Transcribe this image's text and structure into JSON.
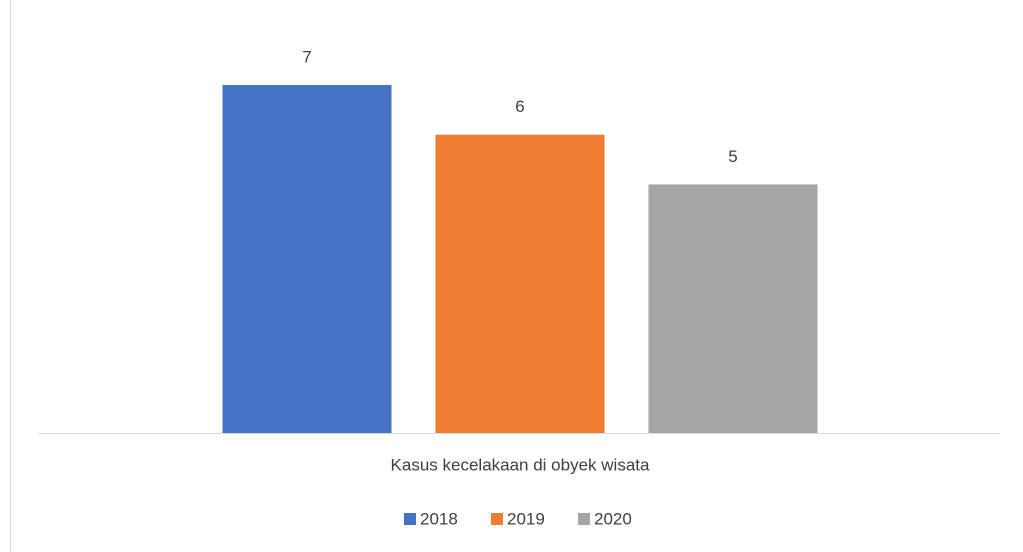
{
  "chart_data": {
    "type": "bar",
    "categories": [
      "Kasus kecelakaan di obyek wisata"
    ],
    "series": [
      {
        "name": "2018",
        "color": "#4472c4",
        "values": [
          7
        ]
      },
      {
        "name": "2019",
        "color": "#ed7d31",
        "values": [
          6
        ]
      },
      {
        "name": "2020",
        "color": "#a5a5a5",
        "values": [
          5
        ]
      }
    ],
    "legend": "bottom"
  }
}
